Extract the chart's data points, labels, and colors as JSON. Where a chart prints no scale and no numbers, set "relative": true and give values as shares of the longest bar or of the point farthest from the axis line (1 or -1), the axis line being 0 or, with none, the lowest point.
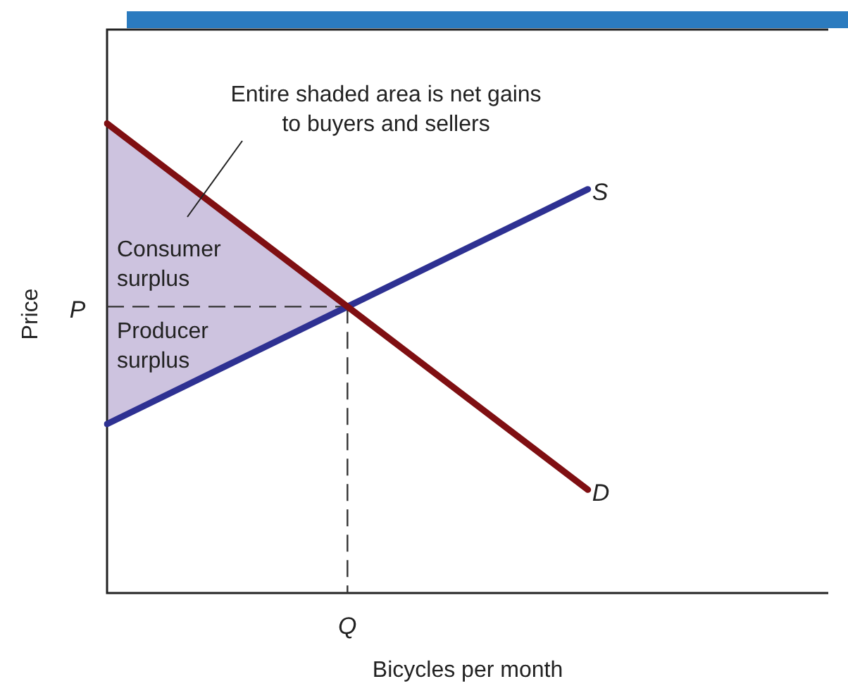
{
  "chart_data": {
    "type": "line",
    "relative": true,
    "xlabel": "Bicycles per month",
    "ylabel": "Price",
    "categories": [
      null,
      null,
      null,
      null,
      null,
      null,
      null
    ],
    "series": [
      {
        "name": "D",
        "color": "#7f0f12",
        "values": [
          1.0,
          0.805,
          0.61,
          0.415,
          0.22,
          null,
          null
        ]
      },
      {
        "name": "S",
        "color": "#2e3192",
        "values": [
          0.36,
          0.485,
          0.61,
          0.735,
          0.86,
          null,
          null
        ]
      },
      {
        "type": "area",
        "color": "#cdc3df",
        "values": [
          1.0,
          0.805,
          0.61,
          null,
          null,
          null,
          null
        ]
      }
    ],
    "ref_lines": [
      {
        "axis": "y",
        "value": 0.61,
        "label": "P",
        "line_style": "dashed"
      }
    ],
    "annotations": [
      "Entire shaded area is net gains to buyers and sellers",
      "Consumer surplus",
      "Producer surplus",
      "Q"
    ],
    "grid": false,
    "legend": false,
    "marker": "none",
    "line_style": "solid"
  }
}
